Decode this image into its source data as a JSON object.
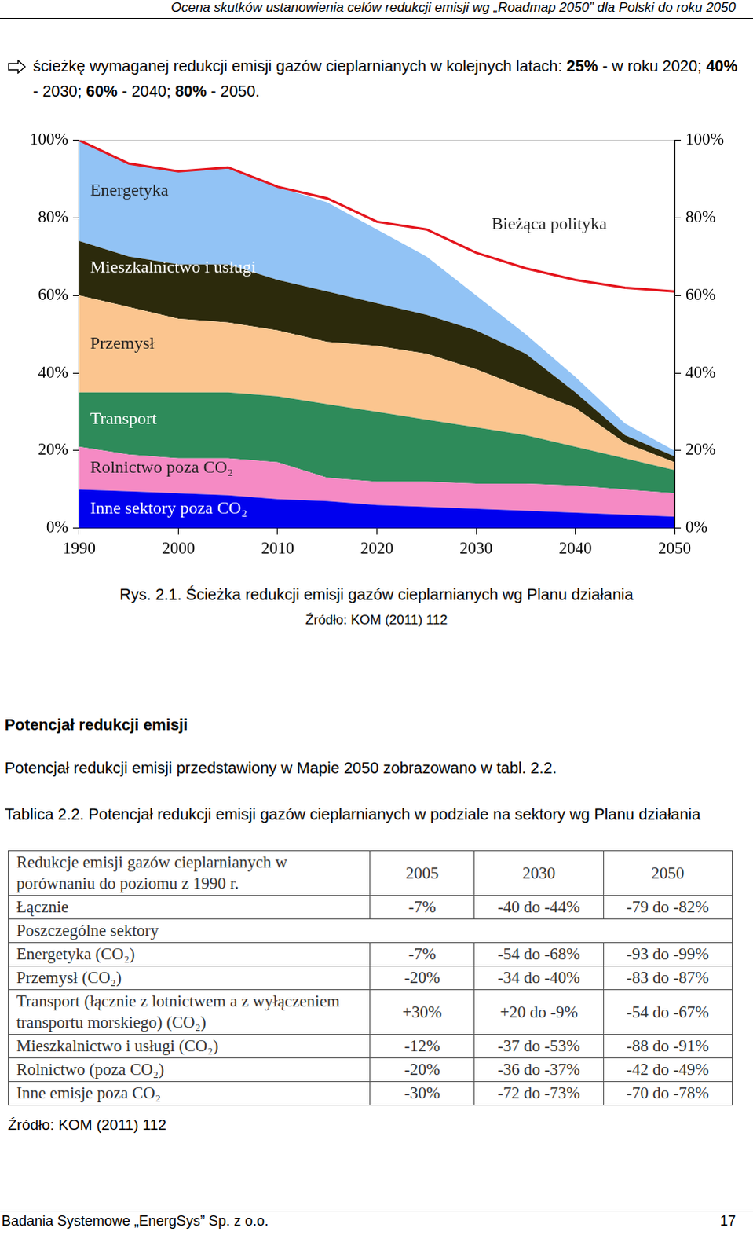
{
  "header": "Ocena skutków ustanowienia celów redukcji emisji wg „Roadmap 2050” dla Polski do roku 2050",
  "bullet": [
    {
      "text": "ścieżkę wymaganej redukcji emisji gazów cieplarnianych w kolejnych latach: ",
      "bold": false
    },
    {
      "text": "25%",
      "bold": true
    },
    {
      "text": " - w roku 2020; ",
      "bold": false
    },
    {
      "text": "40%",
      "bold": true
    },
    {
      "text": " - 2030; ",
      "bold": false
    },
    {
      "text": "60%",
      "bold": true
    },
    {
      "text": " - 2040; ",
      "bold": false
    },
    {
      "text": "80%",
      "bold": true
    },
    {
      "text": " - 2050.",
      "bold": false
    }
  ],
  "chart_data": {
    "type": "area",
    "stacked": true,
    "grid": false,
    "x": [
      1990,
      1995,
      2000,
      2005,
      2010,
      2015,
      2020,
      2025,
      2030,
      2035,
      2040,
      2045,
      2050
    ],
    "xlim": [
      1990,
      2050
    ],
    "xticks": [
      1990,
      2000,
      2010,
      2020,
      2030,
      2040,
      2050
    ],
    "ylim": [
      0,
      100
    ],
    "yticks": [
      {
        "value": 0,
        "label": "0%"
      },
      {
        "value": 20,
        "label": "20%"
      },
      {
        "value": 40,
        "label": "40%"
      },
      {
        "value": 60,
        "label": "60%"
      },
      {
        "value": 80,
        "label": "80%"
      },
      {
        "value": 100,
        "label": "100%"
      }
    ],
    "y2lim": [
      0,
      100
    ],
    "y2ticks": [
      {
        "value": 0,
        "label": "0%"
      },
      {
        "value": 20,
        "label": "20%"
      },
      {
        "value": 40,
        "label": "40%"
      },
      {
        "value": 60,
        "label": "60%"
      },
      {
        "value": 80,
        "label": "80%"
      },
      {
        "value": 100,
        "label": "100%"
      }
    ],
    "series": [
      {
        "name": "Inne sektory poza CO₂",
        "type": "area",
        "color": "#0000ee",
        "values": [
          10,
          9.5,
          9,
          8.5,
          7.5,
          7,
          6,
          5.5,
          5,
          4.5,
          4,
          3.5,
          3
        ]
      },
      {
        "name": "Rolnictwo poza CO₂",
        "type": "area",
        "color": "#f58ac4",
        "values": [
          11,
          9.5,
          9,
          9.5,
          9.5,
          6,
          6,
          6.5,
          6.5,
          7,
          7,
          6.5,
          6
        ]
      },
      {
        "name": "Transport",
        "type": "area",
        "color": "#2e8b5a",
        "values": [
          14,
          16,
          17,
          17,
          17,
          19,
          18,
          16,
          14.5,
          12.5,
          10,
          8,
          6
        ]
      },
      {
        "name": "Przemysł",
        "type": "area",
        "color": "#fbc58f",
        "values": [
          25,
          22,
          19,
          18,
          17,
          16,
          17,
          17,
          15,
          12,
          10,
          4,
          2
        ]
      },
      {
        "name": "Mieszkalnictwo i usługi",
        "type": "area",
        "color": "#2c2a0c",
        "values": [
          14,
          13,
          14,
          15,
          13,
          13,
          11,
          10,
          10,
          9,
          4,
          2,
          1.5
        ]
      },
      {
        "name": "Energetyka",
        "type": "area",
        "color": "#92c3f5",
        "values": [
          26,
          24,
          24,
          25,
          24,
          23,
          19,
          15,
          9,
          5,
          4,
          3,
          1.5
        ]
      },
      {
        "name": "Bieżąca polityka",
        "type": "line",
        "color": "#e4141c",
        "values": [
          100,
          94,
          92,
          93,
          88,
          85,
          79,
          77,
          71,
          67,
          64,
          62,
          61
        ]
      }
    ]
  },
  "figure_caption": "Rys. 2.1. Ścieżka redukcji emisji gazów cieplarnianych wg Planu działania",
  "figure_source": "Źródło: KOM (2011) 112",
  "section_title": "Potencjał redukcji emisji",
  "section_text": "Potencjał redukcji emisji przedstawiony w Mapie 2050 zobrazowano w tabl. 2.2.",
  "table": {
    "caption": "Tablica 2.2. Potencjał redukcji emisji gazów cieplarnianych w podziale na sektory wg Planu działania",
    "header": [
      "Redukcje emisji gazów cieplarnianych w porównaniu do poziomu z 1990 r.",
      "2005",
      "2030",
      "2050"
    ],
    "rows": [
      [
        "Łącznie",
        "-7%",
        "-40 do -44%",
        "-79 do -82%"
      ],
      [
        "Poszczególne sektory"
      ],
      [
        "Energetyka (CO₂)",
        "-7%",
        "-54 do -68%",
        "-93 do -99%"
      ],
      [
        "Przemysł (CO₂)",
        "-20%",
        "-34 do -40%",
        "-83 do -87%"
      ],
      [
        "Transport (łącznie z lotnictwem a z wyłączeniem transportu morskiego) (CO₂)",
        "+30%",
        "+20 do -9%",
        "-54 do -67%"
      ],
      [
        "Mieszkalnictwo i usługi (CO₂)",
        "-12%",
        "-37 do -53%",
        "-88 do -91%"
      ],
      [
        "Rolnictwo (poza CO₂)",
        "-20%",
        "-36 do -37%",
        "-42 do -49%"
      ],
      [
        "Inne emisje poza CO₂",
        "-30%",
        "-72 do -73%",
        "-70 do -78%"
      ]
    ],
    "source": "Źródło: KOM (2011) 112"
  },
  "footer": {
    "left": "Badania Systemowe „EnergSys” Sp. z o.o.",
    "right": "17"
  }
}
